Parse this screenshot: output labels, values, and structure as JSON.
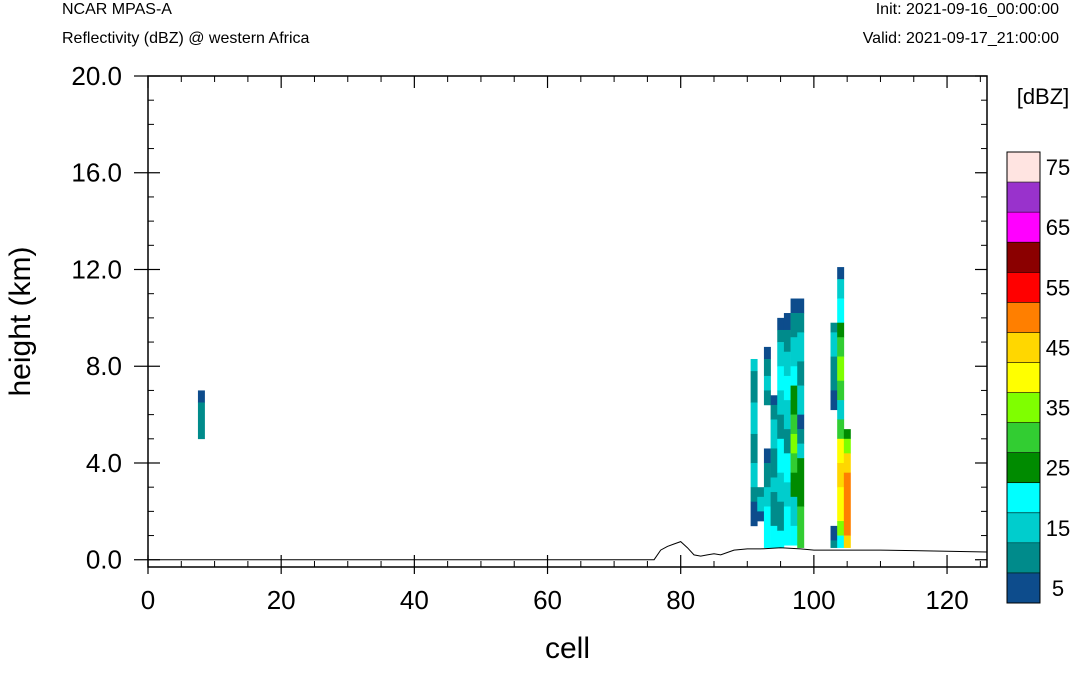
{
  "header": {
    "model": "NCAR MPAS-A",
    "field": "Reflectivity (dBZ) @ western Africa",
    "init": "Init: 2021-09-16_00:00:00",
    "valid": "Valid: 2021-09-17_21:00:00"
  },
  "chart_data": {
    "type": "heatmap",
    "xlabel": "cell",
    "ylabel": "height (km)",
    "xlim": [
      0,
      126
    ],
    "ylim": [
      -0.3,
      20
    ],
    "x_ticks": [
      "0",
      "20",
      "40",
      "60",
      "80",
      "100",
      "120"
    ],
    "x_tick_values": [
      0,
      20,
      40,
      60,
      80,
      100,
      120
    ],
    "y_ticks": [
      "0.0",
      "4.0",
      "8.0",
      "12.0",
      "16.0",
      "20.0"
    ],
    "y_tick_values": [
      0,
      4,
      8,
      12,
      16,
      20
    ],
    "colorbar": {
      "unit": "[dBZ]",
      "levels": [
        5,
        10,
        15,
        20,
        25,
        30,
        35,
        40,
        45,
        50,
        55,
        60,
        65,
        70,
        75
      ],
      "colors": [
        "#0d4c8c",
        "#008b8b",
        "#00cdcd",
        "#00ffff",
        "#008b00",
        "#32cd32",
        "#7fff00",
        "#ffff00",
        "#ffd700",
        "#ff7f00",
        "#ff0000",
        "#8b0000",
        "#ff00ff",
        "#9932cc",
        "#ffe4e1"
      ],
      "labels": [
        "5",
        "15",
        "25",
        "35",
        "45",
        "55",
        "65",
        "75"
      ]
    },
    "terrain": [
      [
        0,
        0
      ],
      [
        76,
        0
      ],
      [
        77,
        0.4
      ],
      [
        78,
        0.55
      ],
      [
        79,
        0.65
      ],
      [
        80,
        0.75
      ],
      [
        81,
        0.5
      ],
      [
        82,
        0.2
      ],
      [
        83,
        0.15
      ],
      [
        84,
        0.2
      ],
      [
        85,
        0.25
      ],
      [
        86,
        0.2
      ],
      [
        87,
        0.3
      ],
      [
        88,
        0.4
      ],
      [
        90,
        0.45
      ],
      [
        92,
        0.45
      ],
      [
        95,
        0.5
      ],
      [
        98,
        0.45
      ],
      [
        100,
        0.4
      ],
      [
        105,
        0.4
      ],
      [
        110,
        0.4
      ],
      [
        115,
        0.38
      ],
      [
        120,
        0.35
      ],
      [
        126,
        0.32
      ]
    ],
    "reflectivity_columns": [
      {
        "x": 8,
        "segments": [
          [
            6.5,
            7.0,
            5
          ],
          [
            5.0,
            6.5,
            10
          ]
        ]
      },
      {
        "x": 91,
        "segments": [
          [
            7.8,
            8.3,
            15
          ],
          [
            6.5,
            7.8,
            10
          ],
          [
            5.2,
            6.5,
            15
          ],
          [
            4.0,
            5.2,
            10
          ],
          [
            3.0,
            4.0,
            15
          ],
          [
            2.4,
            3.0,
            10
          ],
          [
            1.4,
            2.4,
            5
          ]
        ]
      },
      {
        "x": 92,
        "segments": [
          [
            2.6,
            3.0,
            10
          ],
          [
            2.0,
            2.6,
            15
          ],
          [
            1.6,
            2.0,
            5
          ]
        ]
      },
      {
        "x": 93,
        "segments": [
          [
            8.3,
            8.8,
            5
          ],
          [
            7.6,
            8.3,
            10
          ],
          [
            7.0,
            7.6,
            15
          ],
          [
            6.4,
            7.0,
            10
          ],
          [
            4.0,
            4.6,
            5
          ],
          [
            3.0,
            4.0,
            10
          ],
          [
            2.2,
            3.0,
            15
          ],
          [
            0.5,
            2.2,
            20
          ]
        ]
      },
      {
        "x": 94,
        "segments": [
          [
            6.4,
            6.8,
            5
          ],
          [
            5.8,
            6.4,
            10
          ],
          [
            4.6,
            5.8,
            15
          ],
          [
            3.4,
            4.6,
            10
          ],
          [
            2.8,
            3.4,
            15
          ],
          [
            1.4,
            2.8,
            10
          ],
          [
            0.5,
            1.4,
            20
          ]
        ]
      },
      {
        "x": 95,
        "segments": [
          [
            9.5,
            10.0,
            5
          ],
          [
            9.0,
            9.5,
            10
          ],
          [
            8.0,
            9.0,
            15
          ],
          [
            7.0,
            8.0,
            20
          ],
          [
            6.0,
            7.0,
            15
          ],
          [
            5.0,
            6.0,
            10
          ],
          [
            3.6,
            5.0,
            20
          ],
          [
            2.4,
            3.6,
            15
          ],
          [
            1.2,
            2.4,
            10
          ],
          [
            0.5,
            1.2,
            20
          ]
        ]
      },
      {
        "x": 96,
        "segments": [
          [
            9.5,
            10.2,
            5
          ],
          [
            8.6,
            9.5,
            10
          ],
          [
            7.6,
            8.6,
            15
          ],
          [
            6.6,
            7.6,
            20
          ],
          [
            5.4,
            6.6,
            15
          ],
          [
            4.4,
            5.4,
            10
          ],
          [
            3.2,
            4.4,
            20
          ],
          [
            2.2,
            3.2,
            15
          ],
          [
            0.6,
            2.2,
            20
          ]
        ]
      },
      {
        "x": 97,
        "segments": [
          [
            10.2,
            10.8,
            5
          ],
          [
            9.2,
            10.2,
            10
          ],
          [
            8.0,
            9.2,
            15
          ],
          [
            7.2,
            8.0,
            20
          ],
          [
            6.0,
            7.2,
            25
          ],
          [
            5.2,
            6.0,
            30
          ],
          [
            4.4,
            5.2,
            35
          ],
          [
            3.6,
            4.4,
            30
          ],
          [
            2.6,
            3.6,
            25
          ],
          [
            1.4,
            2.6,
            15
          ],
          [
            0.6,
            1.4,
            20
          ]
        ]
      },
      {
        "x": 98,
        "segments": [
          [
            10.2,
            10.8,
            5
          ],
          [
            9.4,
            10.2,
            10
          ],
          [
            8.2,
            9.4,
            15
          ],
          [
            7.2,
            8.2,
            10
          ],
          [
            6.0,
            7.2,
            15
          ],
          [
            5.4,
            6.0,
            5
          ],
          [
            4.8,
            5.4,
            10
          ],
          [
            4.2,
            4.8,
            15
          ],
          [
            2.2,
            4.2,
            25
          ],
          [
            0.5,
            2.2,
            30
          ]
        ]
      },
      {
        "x": 103,
        "segments": [
          [
            9.4,
            9.8,
            10
          ],
          [
            8.4,
            9.4,
            15
          ],
          [
            7.0,
            8.4,
            10
          ],
          [
            6.2,
            7.0,
            5
          ],
          [
            0.8,
            1.4,
            5
          ],
          [
            0.5,
            0.8,
            10
          ]
        ]
      },
      {
        "x": 104,
        "segments": [
          [
            11.6,
            12.1,
            5
          ],
          [
            10.8,
            11.6,
            15
          ],
          [
            9.8,
            10.8,
            20
          ],
          [
            9.2,
            9.8,
            25
          ],
          [
            8.4,
            9.2,
            30
          ],
          [
            7.4,
            8.4,
            35
          ],
          [
            6.6,
            7.4,
            30
          ],
          [
            5.8,
            6.6,
            15
          ],
          [
            5.0,
            5.8,
            30
          ],
          [
            4.0,
            5.0,
            40
          ],
          [
            3.0,
            4.0,
            45
          ],
          [
            1.6,
            3.0,
            40
          ],
          [
            1.0,
            1.6,
            35
          ],
          [
            0.5,
            1.0,
            20
          ]
        ]
      },
      {
        "x": 105,
        "segments": [
          [
            5.0,
            5.4,
            25
          ],
          [
            4.4,
            5.0,
            35
          ],
          [
            3.6,
            4.4,
            45
          ],
          [
            1.0,
            3.6,
            50
          ],
          [
            0.5,
            1.0,
            45
          ]
        ]
      }
    ]
  }
}
